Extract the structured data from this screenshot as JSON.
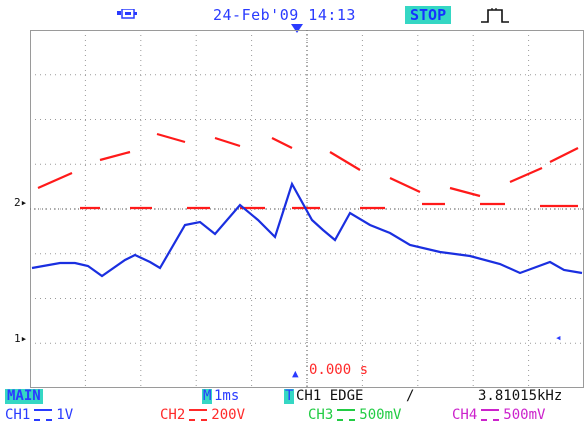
{
  "header": {
    "usb_icon": "usb-icon",
    "date_time": "24-Feb'09 14:13",
    "run_state": "STOP",
    "trigger_icon": "pulse-icon"
  },
  "screen": {
    "marker_ch2": "2",
    "marker_ch1": "1",
    "time_offset": "0.000 s",
    "colors": {
      "ch1": "#1a2fe0",
      "ch2": "#ff1a1a",
      "grid": "#9a9a9a"
    }
  },
  "status": {
    "mode": "MAIN",
    "timebase_prefix": "M",
    "timebase": "1ms",
    "trigger_prefix": "T",
    "trigger_source": "CH1 EDGE",
    "trigger_slope": "/",
    "frequency": "3.81015kHz"
  },
  "channels": [
    {
      "name": "CH1",
      "scale": "1V",
      "color": "#2a3bff"
    },
    {
      "name": "CH2",
      "scale": "200V",
      "color": "#ff2a2a"
    },
    {
      "name": "CH3",
      "scale": "500mV",
      "color": "#22cc44"
    },
    {
      "name": "CH4",
      "scale": "500mV",
      "color": "#cc22cc"
    }
  ]
}
